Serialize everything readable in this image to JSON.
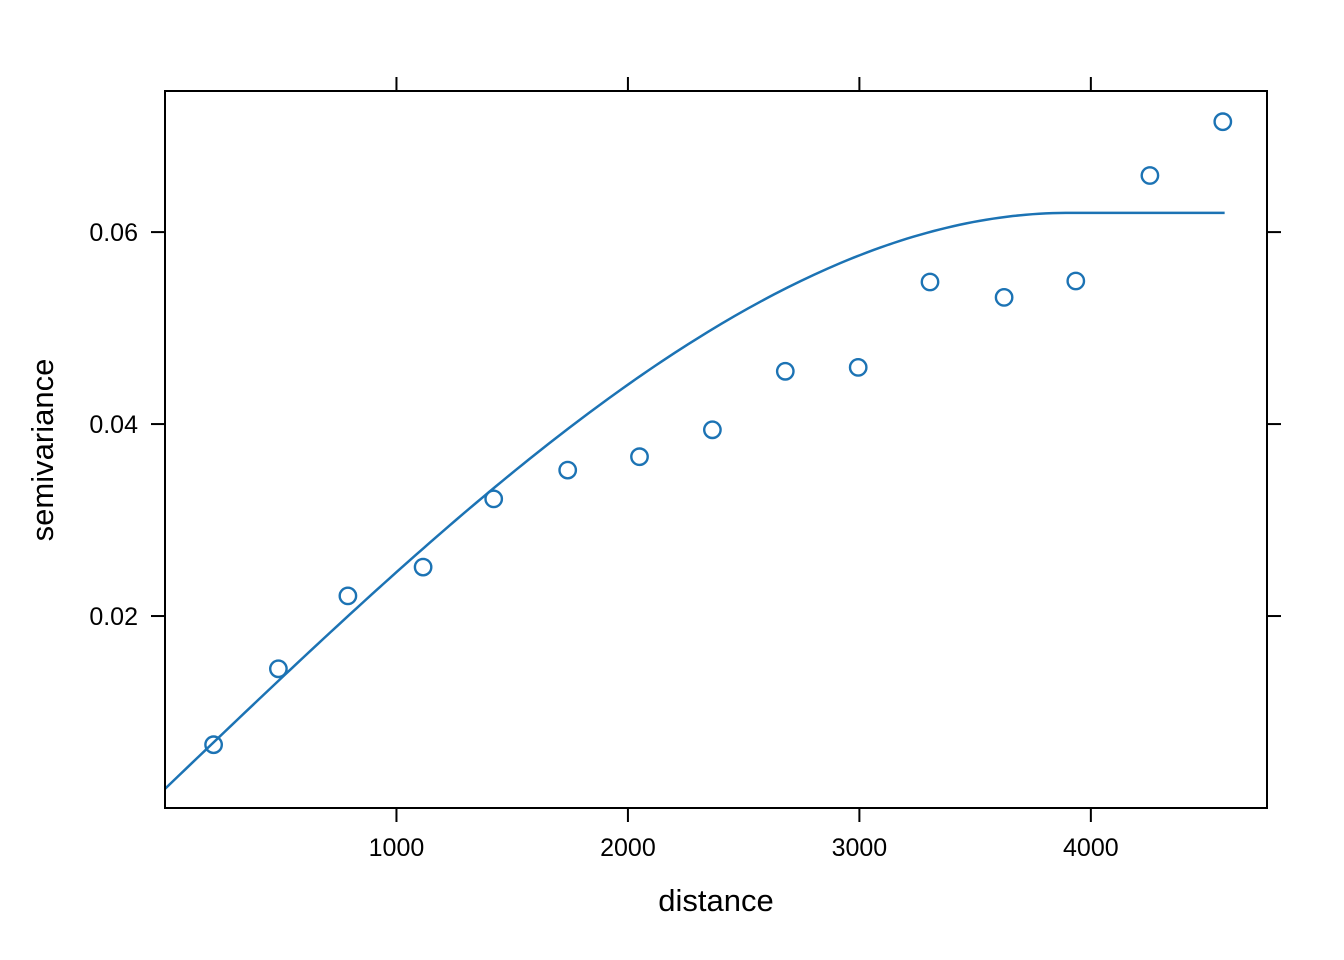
{
  "figure": {
    "background": "#ffffff",
    "frame_color": "#000000",
    "accent_blue": "#1c73b4"
  },
  "chart_data": {
    "type": "scatter",
    "title": "",
    "xlabel": "distance",
    "ylabel": "semivariance",
    "xlim": [
      0,
      4761
    ],
    "ylim": [
      0,
      0.0747
    ],
    "grid": false,
    "legend_position": "none",
    "x_ticks": {
      "values": [
        1000,
        2000,
        3000,
        4000
      ],
      "labels": [
        "1000",
        "2000",
        "3000",
        "4000"
      ]
    },
    "y_ticks": {
      "values": [
        0.02,
        0.04,
        0.06
      ],
      "labels": [
        "0.02",
        "0.04",
        "0.06"
      ]
    },
    "series": [
      {
        "name": "sample-variogram-points",
        "type": "scatter",
        "marker": "open-circle",
        "color": "#1c73b4",
        "x": [
          210,
          490,
          790,
          1115,
          1420,
          1740,
          2050,
          2365,
          2680,
          2995,
          3305,
          3625,
          3935,
          4255,
          4570
        ],
        "y": [
          0.0066,
          0.0145,
          0.0221,
          0.0251,
          0.0322,
          0.0352,
          0.0366,
          0.0394,
          0.0455,
          0.0459,
          0.0548,
          0.0532,
          0.0549,
          0.0659,
          0.0715
        ]
      },
      {
        "name": "fitted-variogram-model",
        "type": "line",
        "color": "#1c73b4",
        "model": "spherical",
        "nugget": 0.002,
        "partial_sill": 0.06,
        "sill": 0.062,
        "range": 3900,
        "x_start": 0,
        "x_end": 4578
      }
    ]
  }
}
